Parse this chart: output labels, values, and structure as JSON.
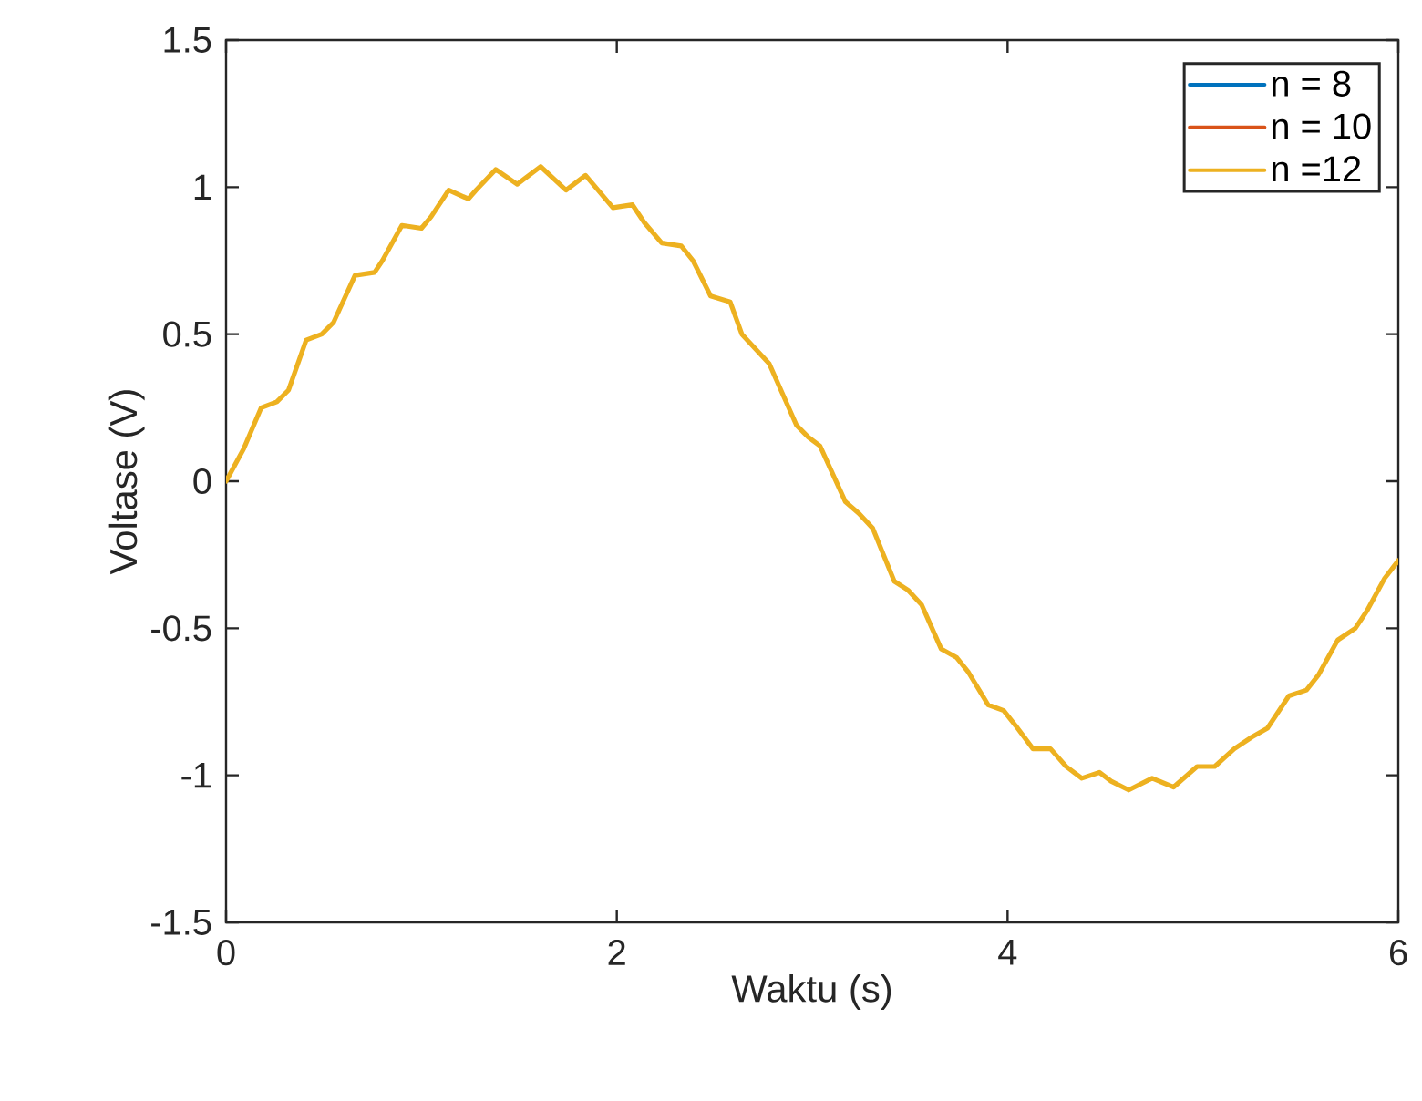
{
  "chart_data": {
    "type": "line",
    "xlabel": "Waktu (s)",
    "ylabel": "Voltase (V)",
    "x": [
      0,
      0.09,
      0.18,
      0.26,
      0.32,
      0.41,
      0.49,
      0.55,
      0.66,
      0.76,
      0.8,
      0.9,
      1.0,
      1.05,
      1.14,
      1.24,
      1.28,
      1.38,
      1.49,
      1.61,
      1.74,
      1.84,
      1.98,
      2.08,
      2.14,
      2.23,
      2.33,
      2.39,
      2.48,
      2.58,
      2.64,
      2.78,
      2.92,
      2.98,
      3.04,
      3.17,
      3.24,
      3.31,
      3.42,
      3.49,
      3.56,
      3.66,
      3.74,
      3.8,
      3.9,
      3.98,
      4.04,
      4.13,
      4.22,
      4.3,
      4.38,
      4.47,
      4.53,
      4.62,
      4.74,
      4.85,
      4.97,
      5.06,
      5.16,
      5.25,
      5.33,
      5.44,
      5.53,
      5.59,
      5.69,
      5.78,
      5.84,
      5.93,
      6.0
    ],
    "series": [
      {
        "name": "n = 8",
        "color": "#0072bd",
        "values": [
          null,
          null,
          null,
          null,
          null,
          null,
          null,
          null,
          null,
          null,
          null,
          null,
          null,
          null,
          null,
          null,
          null,
          null,
          null,
          null,
          null,
          null,
          null,
          null,
          null,
          null,
          null,
          null,
          null,
          null,
          null,
          null,
          null,
          null,
          null,
          null,
          null,
          null,
          null,
          null,
          null,
          null,
          null,
          null,
          null,
          null,
          null,
          null,
          null,
          null,
          null,
          null,
          null,
          null,
          null,
          null,
          null,
          null,
          null,
          null,
          null,
          null,
          null,
          null,
          null,
          null,
          null,
          null,
          null
        ]
      },
      {
        "name": "n = 10",
        "color": "#d95319",
        "values": [
          null,
          null,
          null,
          null,
          null,
          null,
          null,
          null,
          null,
          null,
          null,
          null,
          null,
          null,
          null,
          null,
          null,
          null,
          null,
          null,
          null,
          null,
          null,
          null,
          null,
          null,
          null,
          null,
          null,
          null,
          null,
          null,
          null,
          null,
          null,
          null,
          null,
          null,
          null,
          null,
          null,
          null,
          null,
          null,
          null,
          null,
          null,
          null,
          null,
          null,
          null,
          null,
          null,
          null,
          null,
          null,
          null,
          null,
          null,
          null,
          null,
          null,
          null,
          null,
          null,
          null,
          null,
          null,
          null
        ]
      },
      {
        "name": "n =12",
        "color": "#edb120",
        "values": [
          0,
          0.11,
          0.25,
          0.27,
          0.31,
          0.48,
          0.5,
          0.54,
          0.7,
          0.71,
          0.75,
          0.87,
          0.86,
          0.9,
          0.99,
          0.96,
          0.99,
          1.06,
          1.01,
          1.07,
          0.99,
          1.04,
          0.93,
          0.94,
          0.88,
          0.81,
          0.8,
          0.75,
          0.63,
          0.61,
          0.5,
          0.4,
          0.19,
          0.15,
          0.12,
          -0.07,
          -0.11,
          -0.16,
          -0.34,
          -0.37,
          -0.42,
          -0.57,
          -0.6,
          -0.65,
          -0.76,
          -0.78,
          -0.83,
          -0.91,
          -0.91,
          -0.97,
          -1.01,
          -0.99,
          -1.02,
          -1.05,
          -1.01,
          -1.04,
          -0.97,
          -0.97,
          -0.91,
          -0.87,
          -0.84,
          -0.73,
          -0.71,
          -0.66,
          -0.54,
          -0.5,
          -0.44,
          -0.33,
          -0.27
        ]
      }
    ],
    "xlim": [
      0,
      6
    ],
    "ylim": [
      -1.5,
      1.5
    ],
    "xticks": [
      0,
      2,
      4,
      6
    ],
    "yticks": [
      -1.5,
      -1,
      -0.5,
      0,
      0.5,
      1,
      1.5
    ],
    "legend": "top right",
    "line_style": "solid",
    "marker": "none"
  }
}
